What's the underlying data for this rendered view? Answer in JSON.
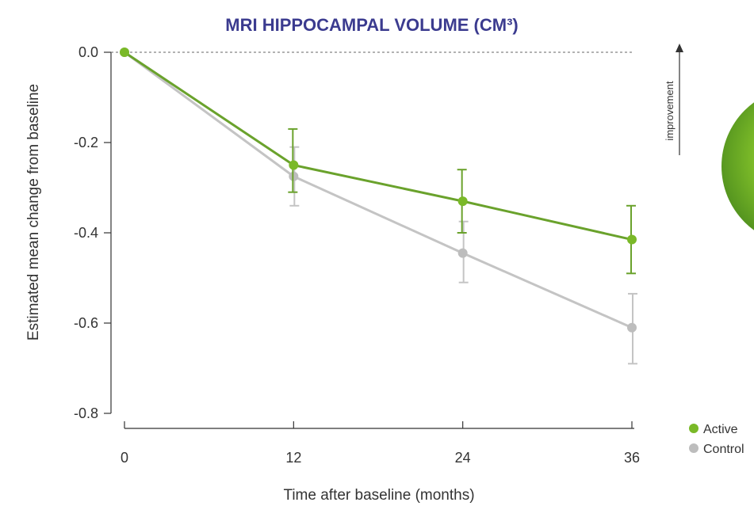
{
  "chart_data": {
    "type": "line",
    "title": "MRI HIPPOCAMPAL VOLUME (CM³)",
    "xlabel": "Time after baseline (months)",
    "ylabel": "Estimated mean change from baseline",
    "x": [
      0,
      12,
      24,
      36
    ],
    "x_ticks": [
      "0",
      "12",
      "24",
      "36"
    ],
    "y_ticks": [
      "0.0",
      "-0.2",
      "-0.4",
      "-0.6",
      "-0.8"
    ],
    "y_tick_values": [
      0.0,
      -0.2,
      -0.4,
      -0.6,
      -0.8
    ],
    "xlim": [
      0,
      36
    ],
    "ylim": [
      -0.8,
      0.0
    ],
    "grid": false,
    "reference_line": 0.0,
    "legend_position": "bottom-right",
    "annotation": "improvement",
    "series": [
      {
        "name": "Active",
        "color": "#6aa22c",
        "marker_color": "#7ab928",
        "values": [
          0.0,
          -0.25,
          -0.33,
          -0.415
        ],
        "error_low": [
          0.0,
          -0.31,
          -0.4,
          -0.49
        ],
        "error_high": [
          0.0,
          -0.17,
          -0.26,
          -0.34
        ]
      },
      {
        "name": "Control",
        "color": "#c4c4c4",
        "marker_color": "#bdbdbd",
        "values": [
          0.0,
          -0.275,
          -0.445,
          -0.61
        ],
        "error_low": [
          0.0,
          -0.34,
          -0.51,
          -0.69
        ],
        "error_high": [
          0.0,
          -0.21,
          -0.375,
          -0.535
        ]
      }
    ]
  },
  "colors": {
    "title": "#3b3b8f",
    "axis": "#333333",
    "reference_line": "#666666",
    "decoration_green": "#7ab928"
  }
}
